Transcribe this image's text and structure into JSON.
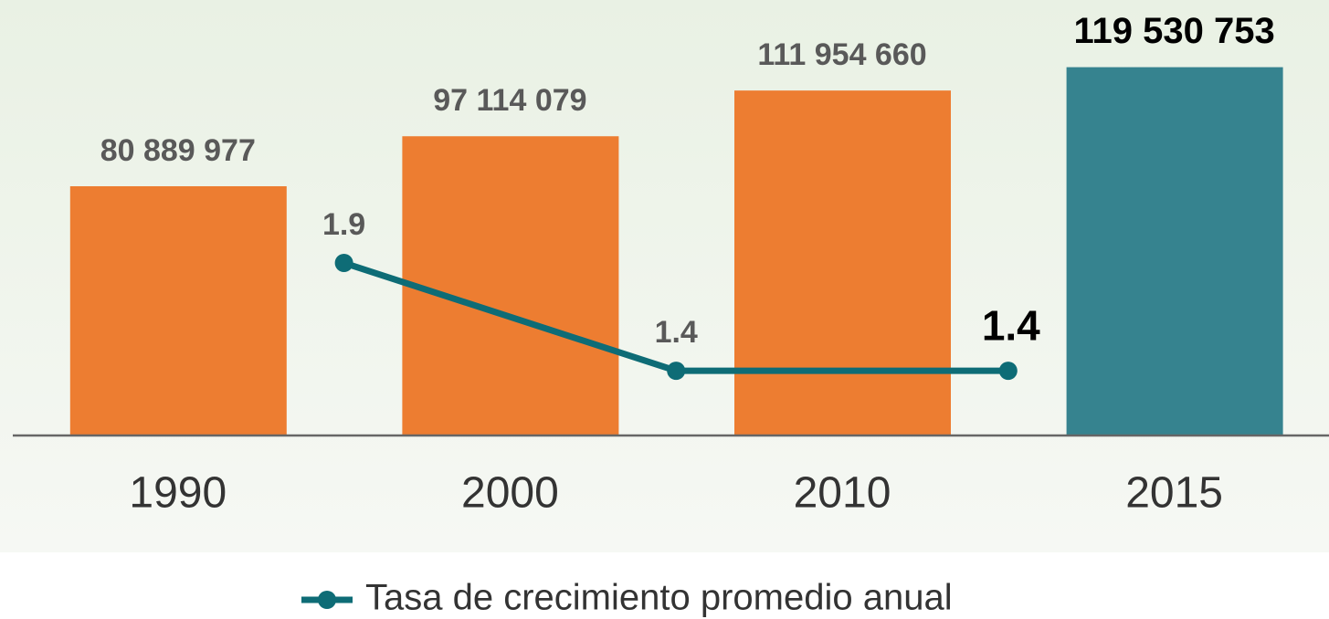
{
  "chart_data": {
    "type": "bar",
    "categories": [
      "1990",
      "2000",
      "2010",
      "2015"
    ],
    "values": [
      80889977,
      97114079,
      111954660,
      119530753
    ],
    "value_labels": [
      "80 889 977",
      "97 114 079",
      "111 954 660",
      "119 530 753"
    ],
    "colors": [
      "#ED7D31",
      "#ED7D31",
      "#ED7D31",
      "#36838F"
    ],
    "ylim": [
      0,
      140000000
    ],
    "series": [
      {
        "name": "Tasa de crecimiento promedio anual",
        "type": "line",
        "color": "#0E6C76",
        "values": [
          null,
          1.9,
          1.4,
          1.4
        ],
        "axis": "y2"
      }
    ],
    "y2lim": [
      1.1,
      3.1
    ],
    "legend": "bottom"
  }
}
